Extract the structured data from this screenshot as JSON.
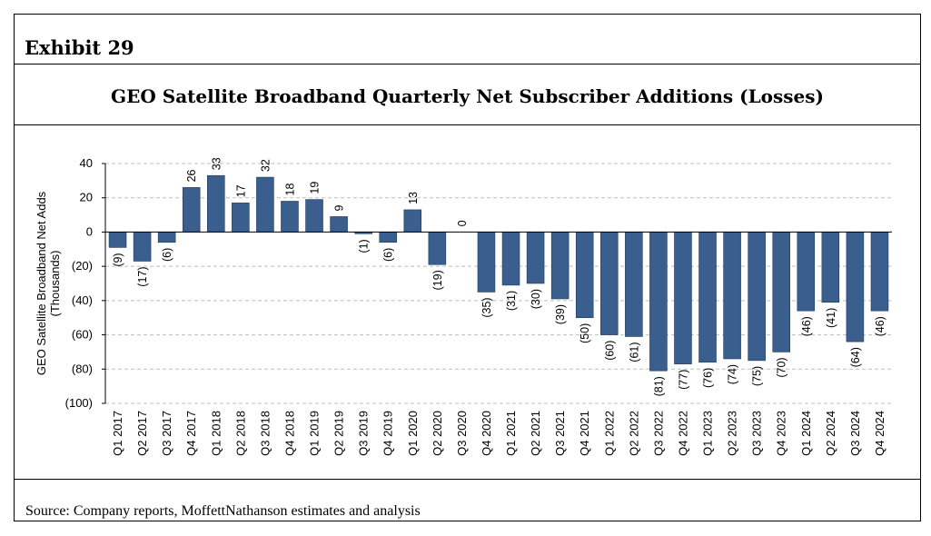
{
  "exhibit": "Exhibit 29",
  "source": "Source: Company reports, MoffettNathanson estimates and analysis",
  "colors": {
    "bar": "#3A5F8F",
    "bar_edge": "#1F3A5C",
    "grid": "#BFBFBF"
  },
  "chart_data": {
    "type": "bar",
    "title": "GEO Satellite Broadband Quarterly Net Subscriber Additions (Losses)",
    "ylabel": "GEO Satellite Broadband Net Adds",
    "ylabel2": "(Thousands)",
    "xlabel": "",
    "ylim": [
      -100,
      40
    ],
    "yticks": [
      40,
      20,
      0,
      -20,
      -40,
      -60,
      -80,
      -100
    ],
    "ytick_labels": [
      "40",
      "20",
      "0",
      "(20)",
      "(40)",
      "(60)",
      "(80)",
      "(100)"
    ],
    "grid": true,
    "categories": [
      "Q1 2017",
      "Q2 2017",
      "Q3 2017",
      "Q4 2017",
      "Q1 2018",
      "Q2 2018",
      "Q3 2018",
      "Q4 2018",
      "Q1 2019",
      "Q2 2019",
      "Q3 2019",
      "Q4 2019",
      "Q1 2020",
      "Q2 2020",
      "Q3 2020",
      "Q4 2020",
      "Q1 2021",
      "Q2 2021",
      "Q3 2021",
      "Q4 2021",
      "Q1 2022",
      "Q2 2022",
      "Q3 2022",
      "Q4 2022",
      "Q1 2023",
      "Q2 2023",
      "Q3 2023",
      "Q4 2023",
      "Q1 2024",
      "Q2 2024",
      "Q3 2024",
      "Q4 2024"
    ],
    "values": [
      -9,
      -17,
      -6,
      26,
      33,
      17,
      32,
      18,
      19,
      9,
      -1,
      -6,
      13,
      -19,
      0,
      -35,
      -31,
      -30,
      -39,
      -50,
      -60,
      -61,
      -81,
      -77,
      -76,
      -74,
      -75,
      -70,
      -46,
      -41,
      -64,
      -46
    ],
    "labels": [
      "(9)",
      "(17)",
      "(6)",
      "26",
      "33",
      "17",
      "32",
      "18",
      "19",
      "9",
      "(1)",
      "(6)",
      "13",
      "(19)",
      "0",
      "(35)",
      "(31)",
      "(30)",
      "(39)",
      "(50)",
      "(60)",
      "(61)",
      "(81)",
      "(77)",
      "(76)",
      "(74)",
      "(75)",
      "(70)",
      "(46)",
      "(41)",
      "(64)",
      "(46)"
    ]
  }
}
